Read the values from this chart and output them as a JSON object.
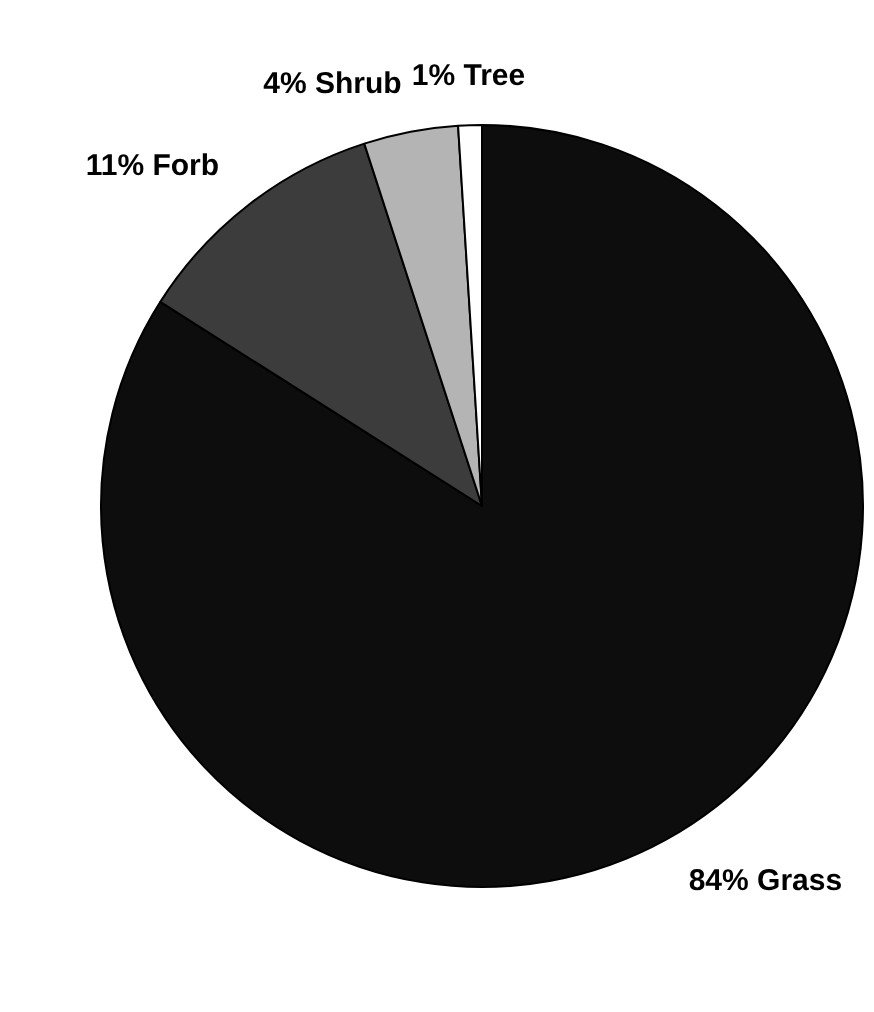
{
  "chart_data": {
    "type": "pie",
    "categories": [
      "Grass",
      "Forb",
      "Shrub",
      "Tree"
    ],
    "values": [
      84,
      11,
      4,
      1
    ],
    "value_labels": [
      "84%",
      "11%",
      "4%",
      "1%"
    ],
    "colors": [
      "#0d0d0d",
      "#3c3c3c",
      "#b4b4b4",
      "#ffffff"
    ],
    "legend": false
  }
}
